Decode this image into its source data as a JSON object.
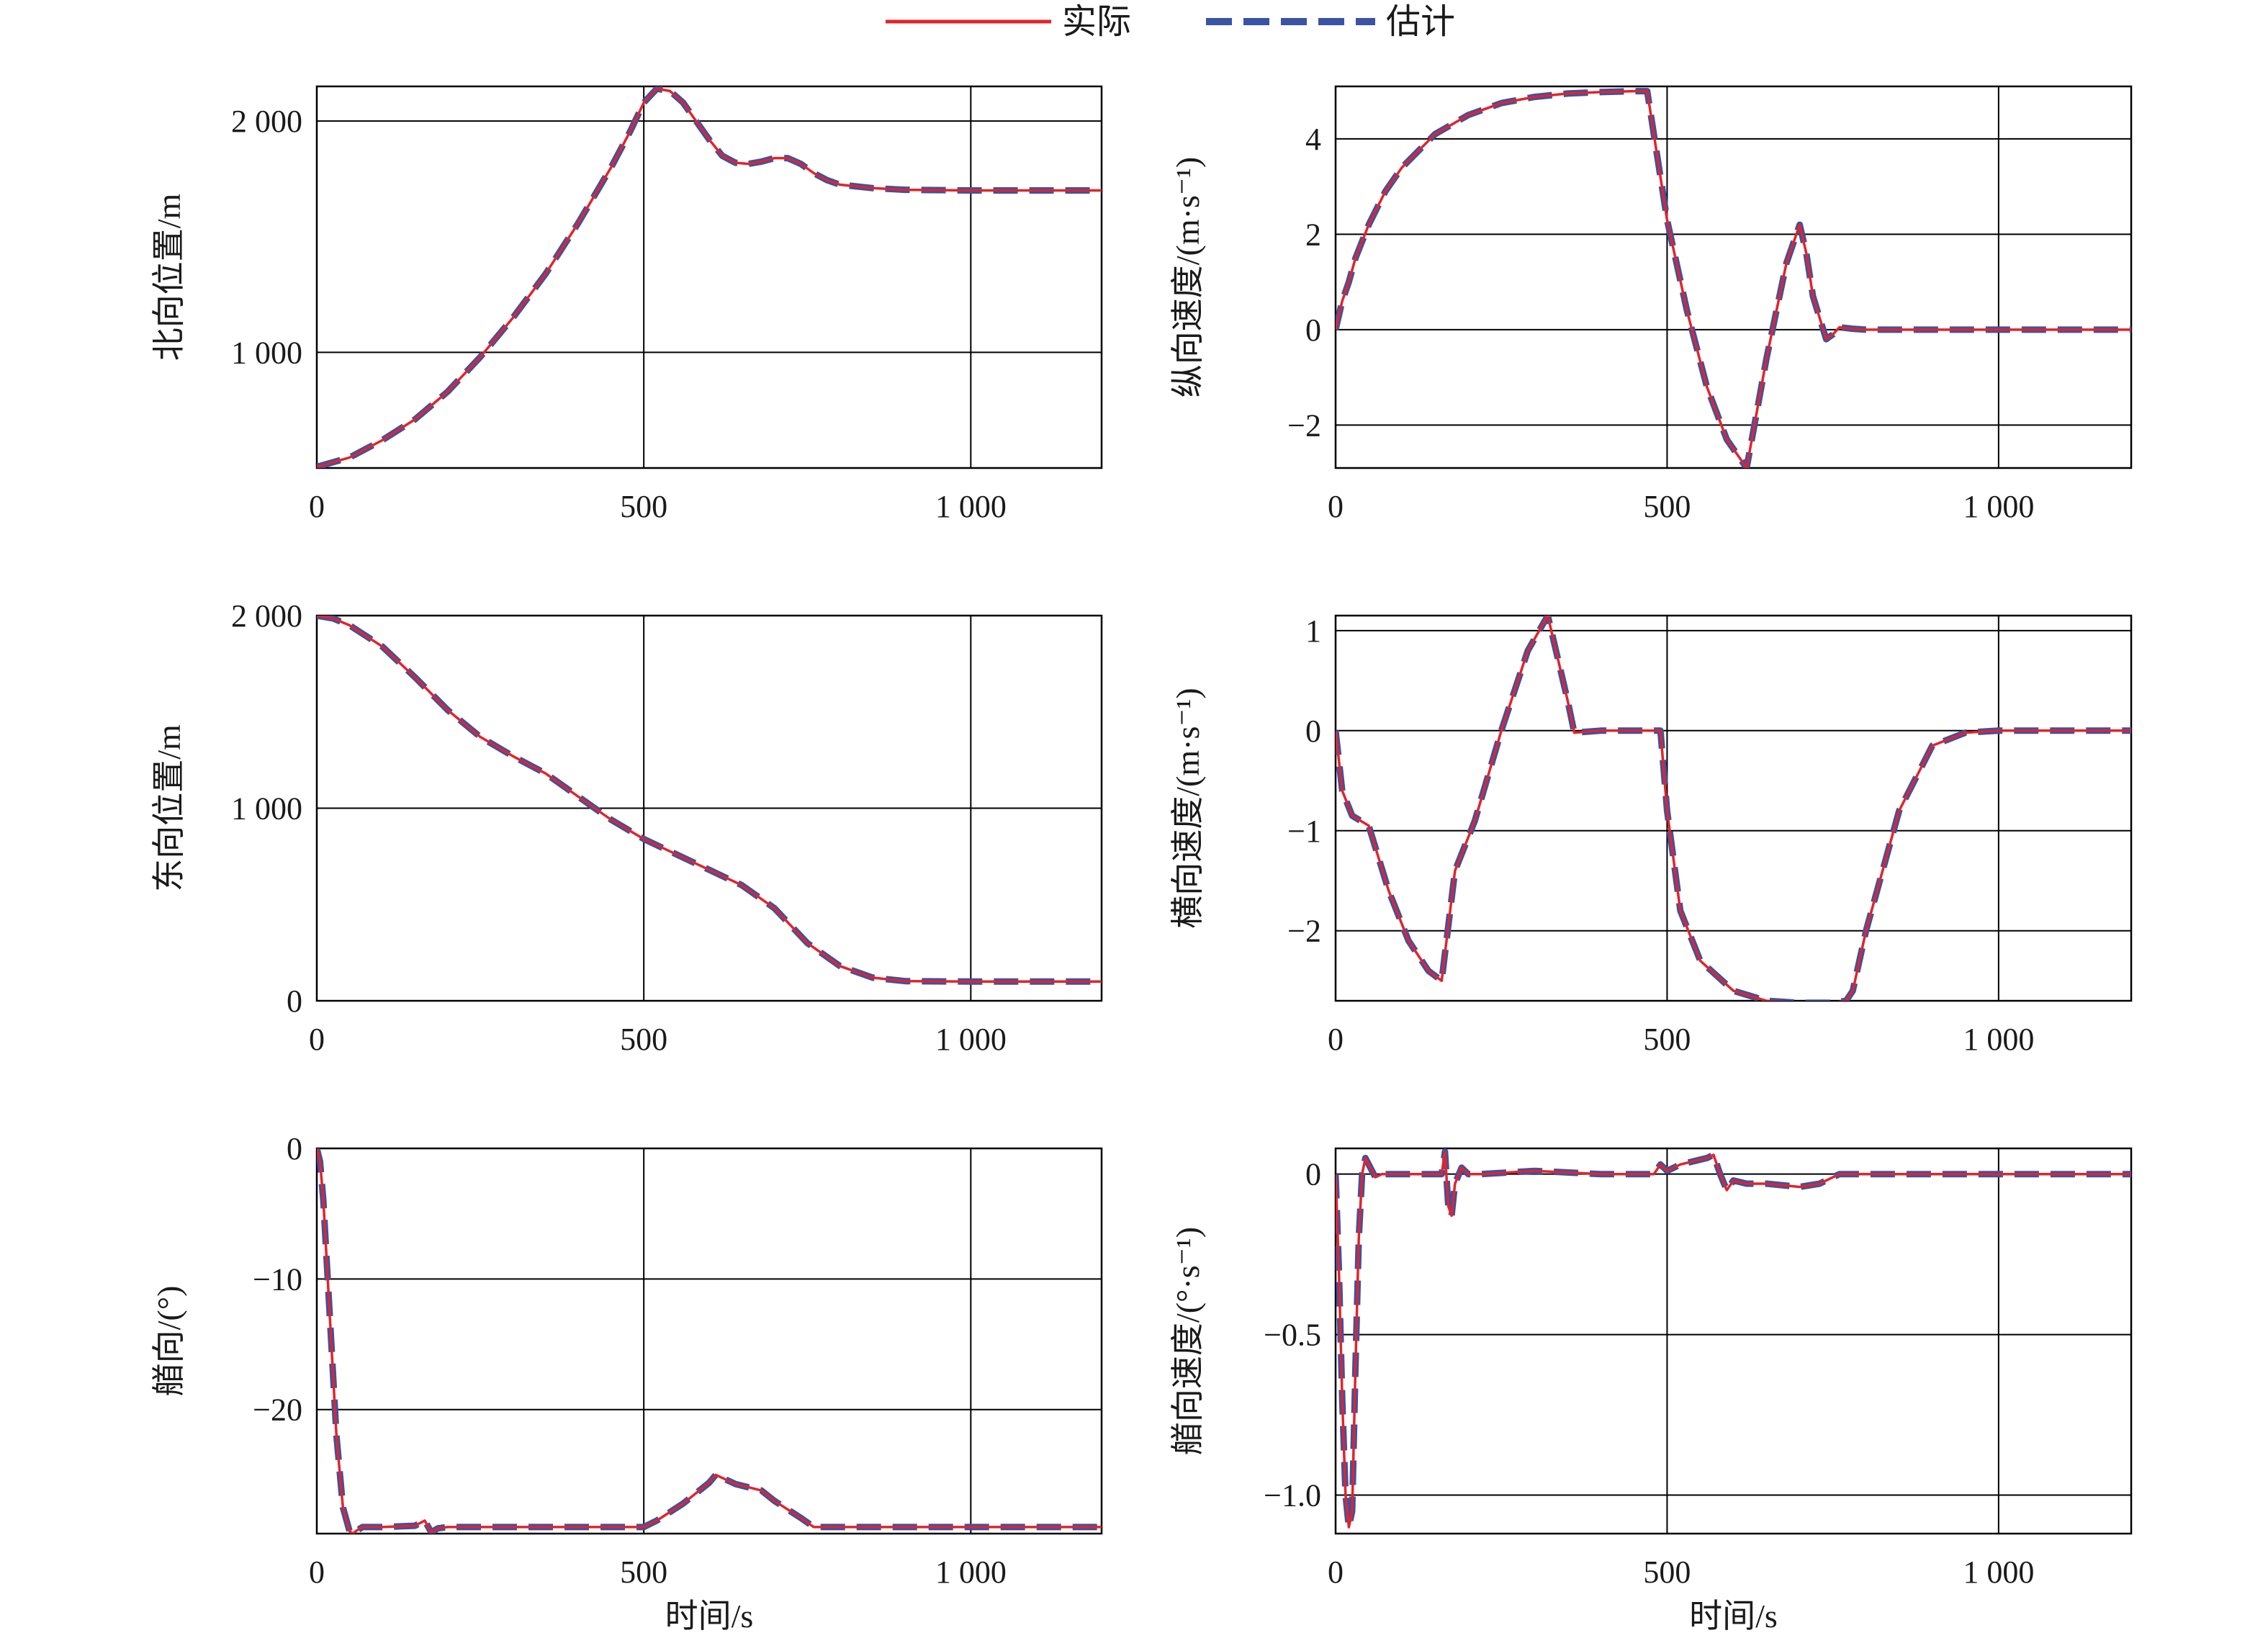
{
  "legend": {
    "actual": {
      "label": "实际",
      "color": "#e0242b"
    },
    "estimate": {
      "label": "估计",
      "color": "#3a53a4"
    }
  },
  "chart_data": [
    {
      "type": "line",
      "ylabel": "北向位置/m",
      "xlabel": "",
      "xlim": [
        0,
        1200
      ],
      "ylim": [
        500,
        2150
      ],
      "xticks": [
        {
          "v": 0,
          "t": "0"
        },
        {
          "v": 500,
          "t": "500"
        },
        {
          "v": 1000,
          "t": "1 000"
        }
      ],
      "yticks": [
        {
          "v": 1000,
          "t": "1 000"
        },
        {
          "v": 2000,
          "t": "2 000"
        }
      ],
      "grid": true,
      "series": [
        {
          "name": "实际",
          "x": [
            0,
            50,
            100,
            150,
            200,
            250,
            300,
            350,
            400,
            450,
            480,
            500,
            520,
            540,
            560,
            580,
            600,
            620,
            640,
            660,
            680,
            700,
            720,
            740,
            760,
            780,
            800,
            850,
            900,
            1000,
            1200
          ],
          "y": [
            505,
            545,
            620,
            710,
            830,
            980,
            1150,
            1340,
            1560,
            1800,
            1960,
            2080,
            2140,
            2130,
            2080,
            2000,
            1920,
            1850,
            1820,
            1815,
            1825,
            1840,
            1840,
            1815,
            1775,
            1745,
            1725,
            1710,
            1703,
            1700,
            1700
          ]
        }
      ]
    },
    {
      "type": "line",
      "ylabel": "纵向速度/(m·s⁻¹)",
      "xlabel": "",
      "xlim": [
        0,
        1200
      ],
      "ylim": [
        -2.9,
        5.1
      ],
      "xticks": [
        {
          "v": 0,
          "t": "0"
        },
        {
          "v": 500,
          "t": "500"
        },
        {
          "v": 1000,
          "t": "1 000"
        }
      ],
      "yticks": [
        {
          "v": -2,
          "t": "−2"
        },
        {
          "v": 0,
          "t": "0"
        },
        {
          "v": 2,
          "t": "2"
        },
        {
          "v": 4,
          "t": "4"
        }
      ],
      "grid": true,
      "series": [
        {
          "name": "实际",
          "x": [
            0,
            10,
            20,
            30,
            50,
            75,
            100,
            150,
            200,
            250,
            300,
            350,
            400,
            450,
            470,
            480,
            500,
            530,
            560,
            590,
            620,
            650,
            680,
            700,
            710,
            720,
            740,
            750,
            760,
            780,
            800,
            1200
          ],
          "y": [
            0,
            0.6,
            1.0,
            1.5,
            2.2,
            2.9,
            3.4,
            4.1,
            4.5,
            4.75,
            4.88,
            4.95,
            4.98,
            5.0,
            5.0,
            4.1,
            2.3,
            0.4,
            -1.2,
            -2.3,
            -2.9,
            -0.6,
            1.4,
            2.2,
            1.6,
            0.7,
            -0.2,
            -0.1,
            0.05,
            0.02,
            0,
            0
          ]
        }
      ]
    },
    {
      "type": "line",
      "ylabel": "东向位置/m",
      "xlabel": "",
      "xlim": [
        0,
        1200
      ],
      "ylim": [
        0,
        2000
      ],
      "xticks": [
        {
          "v": 0,
          "t": "0"
        },
        {
          "v": 500,
          "t": "500"
        },
        {
          "v": 1000,
          "t": "1 000"
        }
      ],
      "yticks": [
        {
          "v": 0,
          "t": "0"
        },
        {
          "v": 1000,
          "t": "1 000"
        },
        {
          "v": 2000,
          "t": "2 000"
        }
      ],
      "grid": true,
      "series": [
        {
          "name": "实际",
          "x": [
            0,
            25,
            50,
            100,
            150,
            200,
            250,
            300,
            350,
            400,
            450,
            500,
            550,
            600,
            650,
            700,
            750,
            800,
            850,
            900,
            1000,
            1200
          ],
          "y": [
            2000,
            1985,
            1950,
            1840,
            1680,
            1510,
            1370,
            1270,
            1180,
            1060,
            940,
            840,
            760,
            680,
            600,
            480,
            300,
            180,
            120,
            102,
            100,
            100
          ]
        }
      ]
    },
    {
      "type": "line",
      "ylabel": "横向速度/(m·s⁻¹)",
      "xlabel": "",
      "xlim": [
        0,
        1200
      ],
      "ylim": [
        -2.7,
        1.15
      ],
      "xticks": [
        {
          "v": 0,
          "t": "0"
        },
        {
          "v": 500,
          "t": "500"
        },
        {
          "v": 1000,
          "t": "1 000"
        }
      ],
      "yticks": [
        {
          "v": -2,
          "t": "−2"
        },
        {
          "v": -1,
          "t": "−1"
        },
        {
          "v": 0,
          "t": "0"
        },
        {
          "v": 1,
          "t": "1"
        }
      ],
      "grid": true,
      "series": [
        {
          "name": "实际",
          "x": [
            0,
            10,
            25,
            50,
            80,
            110,
            140,
            160,
            180,
            210,
            250,
            290,
            320,
            350,
            360,
            400,
            440,
            480,
            490,
            500,
            520,
            550,
            600,
            650,
            700,
            750,
            770,
            780,
            800,
            850,
            900,
            950,
            1000,
            1200
          ],
          "y": [
            0,
            -0.6,
            -0.85,
            -0.95,
            -1.6,
            -2.1,
            -2.4,
            -2.5,
            -1.4,
            -0.9,
            0,
            0.8,
            1.15,
            0.3,
            -0.02,
            0,
            0,
            0,
            0,
            -0.8,
            -1.8,
            -2.3,
            -2.6,
            -2.7,
            -2.72,
            -2.72,
            -2.7,
            -2.6,
            -2.0,
            -0.8,
            -0.15,
            -0.02,
            0,
            0
          ]
        }
      ]
    },
    {
      "type": "line",
      "ylabel": "艏向/(°)",
      "xlabel": "时间/s",
      "xlim": [
        0,
        1200
      ],
      "ylim": [
        -29.5,
        0
      ],
      "xticks": [
        {
          "v": 0,
          "t": "0"
        },
        {
          "v": 500,
          "t": "500"
        },
        {
          "v": 1000,
          "t": "1 000"
        }
      ],
      "yticks": [
        {
          "v": -20,
          "t": "−20"
        },
        {
          "v": -10,
          "t": "−10"
        },
        {
          "v": 0,
          "t": "0"
        }
      ],
      "grid": true,
      "series": [
        {
          "name": "实际",
          "x": [
            0,
            5,
            10,
            20,
            30,
            40,
            50,
            55,
            60,
            70,
            80,
            100,
            150,
            165,
            175,
            185,
            200,
            300,
            400,
            500,
            520,
            560,
            600,
            610,
            640,
            680,
            700,
            740,
            760,
            780,
            800,
            1200
          ],
          "y": [
            0,
            -1,
            -4,
            -13,
            -22,
            -27.5,
            -29.3,
            -29.5,
            -29.3,
            -29.0,
            -29.0,
            -29.0,
            -28.9,
            -28.5,
            -29.4,
            -29.1,
            -29.0,
            -29.0,
            -29.0,
            -29.0,
            -28.5,
            -27.2,
            -25.6,
            -25.0,
            -25.7,
            -26.2,
            -27.0,
            -28.3,
            -29.0,
            -29.0,
            -29.0,
            -29.0
          ]
        }
      ]
    },
    {
      "type": "line",
      "ylabel": "艏向速度/(°·s⁻¹)",
      "xlabel": "时间/s",
      "xlim": [
        0,
        1200
      ],
      "ylim": [
        -1.12,
        0.08
      ],
      "xticks": [
        {
          "v": 0,
          "t": "0"
        },
        {
          "v": 500,
          "t": "500"
        },
        {
          "v": 1000,
          "t": "1 000"
        }
      ],
      "yticks": [
        {
          "v": -1.0,
          "t": "−1.0"
        },
        {
          "v": -0.5,
          "t": "−0.5"
        },
        {
          "v": 0,
          "t": "0"
        }
      ],
      "grid": true,
      "series": [
        {
          "name": "实际",
          "x": [
            0,
            5,
            10,
            15,
            20,
            25,
            30,
            35,
            40,
            45,
            50,
            55,
            60,
            70,
            80,
            100,
            160,
            165,
            170,
            175,
            180,
            190,
            200,
            220,
            300,
            400,
            480,
            490,
            500,
            510,
            520,
            560,
            570,
            580,
            590,
            600,
            620,
            650,
            700,
            730,
            760,
            800,
            1200
          ],
          "y": [
            0,
            -0.3,
            -0.7,
            -1.0,
            -1.1,
            -1.05,
            -0.6,
            -0.2,
            0.0,
            0.05,
            0.03,
            0.01,
            -0.01,
            0,
            0,
            0,
            0,
            0.07,
            -0.1,
            -0.13,
            -0.03,
            0.02,
            0,
            0,
            0.01,
            0,
            0,
            0.03,
            0.01,
            0.02,
            0.03,
            0.05,
            0.06,
            0,
            -0.05,
            -0.02,
            -0.03,
            -0.03,
            -0.04,
            -0.03,
            0,
            0,
            0
          ]
        }
      ]
    }
  ]
}
